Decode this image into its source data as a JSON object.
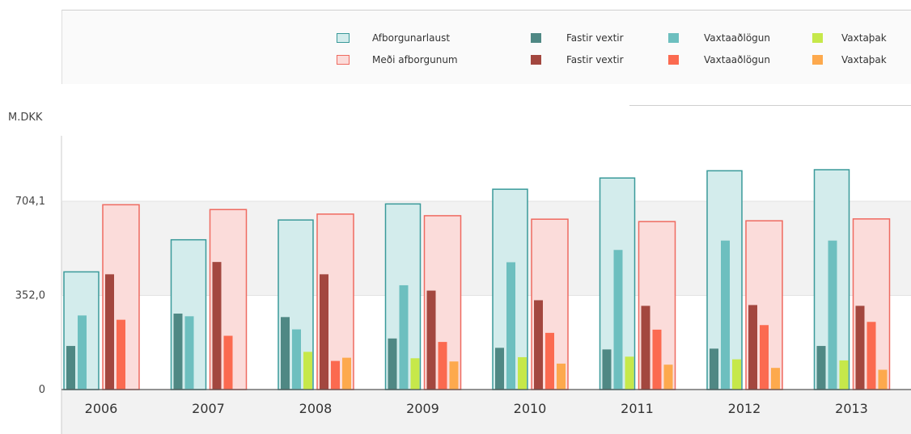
{
  "legend": {
    "totals": [
      {
        "label": "Afborgunarlaust",
        "fill": "#d3ecec",
        "stroke": "#3a9a9a"
      },
      {
        "label": "Meði afborgunum",
        "fill": "#fbdcda",
        "stroke": "#ef6a60"
      }
    ],
    "components": [
      {
        "label": "Fastir vextir",
        "color": "#4f8884"
      },
      {
        "label": "Vaxtaaðlögun",
        "color": "#6dbfbf"
      },
      {
        "label": "Vaxtaþak",
        "color": "#c6e84a"
      },
      {
        "label": "Fastir vextir",
        "color": "#a3473f"
      },
      {
        "label": "Vaxtaaðlögun",
        "color": "#fb6a50"
      },
      {
        "label": "Vaxtaþak",
        "color": "#fda94d"
      }
    ]
  },
  "unit_label": "M.DKK",
  "colors": {
    "a_fill": "#d3ecec",
    "a_stroke": "#3a9a9a",
    "m_fill": "#fbdcda",
    "m_stroke": "#ef6a60",
    "a_fixed": "#4f8884",
    "a_adj": "#6dbfbf",
    "a_cap": "#c6e84a",
    "m_fixed": "#a3473f",
    "m_adj": "#fb6a50",
    "m_cap": "#fda94d"
  },
  "chart_data": {
    "type": "bar",
    "categories": [
      "2006",
      "2007",
      "2008",
      "2009",
      "2010",
      "2011",
      "2012",
      "2013"
    ],
    "yticks": [
      {
        "value": 0,
        "label": "0"
      },
      {
        "value": 352,
        "label": "352,0"
      },
      {
        "value": 704.1,
        "label": "704,1"
      }
    ],
    "ylim": [
      0,
      950
    ],
    "groups": [
      {
        "name": "Afborgunarlaust",
        "total": [
          440,
          560,
          634,
          694,
          749,
          791,
          818,
          822
        ],
        "components": [
          {
            "name": "Fastir vextir",
            "values": [
              163,
              284,
              271,
              191,
              156,
              150,
              153,
              163
            ]
          },
          {
            "name": "Vaxtaaðlögun",
            "values": [
              277,
              274,
              225,
              390,
              476,
              522,
              557,
              557
            ]
          },
          {
            "name": "Vaxtaþak",
            "values": [
              0,
              0,
              141,
              117,
              121,
              123,
              113,
              109
            ]
          }
        ]
      },
      {
        "name": "Meði afborgunum",
        "total": [
          691,
          673,
          656,
          650,
          637,
          628,
          631,
          638
        ],
        "components": [
          {
            "name": "Fastir vextir",
            "values": [
              431,
              477,
              431,
              370,
              334,
              313,
              316,
              313
            ]
          },
          {
            "name": "Vaxtaaðlögun",
            "values": [
              261,
              201,
              107,
              178,
              212,
              224,
              241,
              253
            ]
          },
          {
            "name": "Vaxtaþak",
            "values": [
              0,
              0,
              119,
              105,
              97,
              93,
              81,
              74
            ]
          }
        ]
      }
    ]
  }
}
